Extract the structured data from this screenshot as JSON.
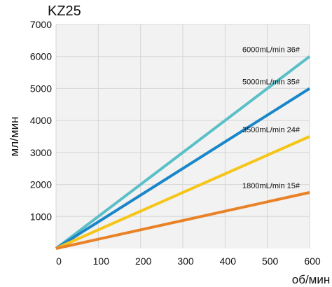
{
  "chart_data": {
    "type": "line",
    "title": "KZ25",
    "xlabel": "об/мин",
    "ylabel": "мл/мин",
    "xlim": [
      0,
      600
    ],
    "ylim": [
      0,
      7000
    ],
    "xticks": [
      0,
      100,
      200,
      300,
      400,
      500,
      600
    ],
    "yticks": [
      1000,
      2000,
      3000,
      4000,
      5000,
      6000,
      7000
    ],
    "grid": true,
    "series": [
      {
        "name": "6000mL/min 36#",
        "x": [
          0,
          600
        ],
        "y": [
          0,
          6000
        ],
        "color": "#5bbfc7"
      },
      {
        "name": "5000mL/min 35#",
        "x": [
          0,
          600
        ],
        "y": [
          0,
          5000
        ],
        "color": "#1a86c9"
      },
      {
        "name": "3500mL/min 24#",
        "x": [
          0,
          600
        ],
        "y": [
          0,
          3500
        ],
        "color": "#f5c518"
      },
      {
        "name": "1800mL/min 15#",
        "x": [
          0,
          600
        ],
        "y": [
          0,
          1750
        ],
        "color": "#e98226"
      }
    ]
  }
}
